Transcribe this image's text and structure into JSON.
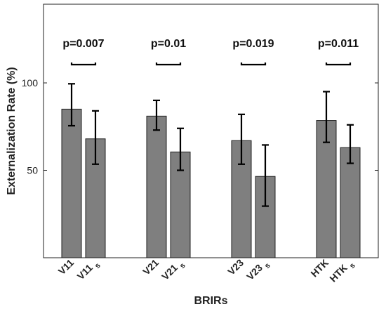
{
  "chart_data": {
    "type": "bar",
    "xlabel": "BRIRs",
    "ylabel": "Externalization Rate (%)",
    "ylim": [
      0,
      145
    ],
    "yticks": [
      50,
      100
    ],
    "grid": false,
    "legend": "none",
    "bar_color": "#7f7f7f",
    "categories": [
      {
        "main": "V11",
        "sub": ""
      },
      {
        "main": "V11",
        "sub": "s"
      },
      {
        "main": "V21",
        "sub": ""
      },
      {
        "main": "V21",
        "sub": "s"
      },
      {
        "main": "V23",
        "sub": ""
      },
      {
        "main": "V23",
        "sub": "s"
      },
      {
        "main": "HTK",
        "sub": ""
      },
      {
        "main": "HTK",
        "sub": "s"
      }
    ],
    "groups": [
      0,
      0,
      1,
      1,
      2,
      2,
      3,
      3
    ],
    "values": [
      85,
      68,
      81,
      60.5,
      67,
      46.5,
      78.5,
      63
    ],
    "error_low": [
      75.5,
      53.5,
      73,
      50,
      53.5,
      29.5,
      66,
      54
    ],
    "error_high": [
      99.5,
      84,
      90,
      74,
      82,
      64.5,
      95,
      76
    ],
    "significance": [
      {
        "group": 0,
        "label": "p=0.007"
      },
      {
        "group": 1,
        "label": "p=0.01"
      },
      {
        "group": 2,
        "label": "p=0.019"
      },
      {
        "group": 3,
        "label": "p=0.011"
      }
    ]
  }
}
